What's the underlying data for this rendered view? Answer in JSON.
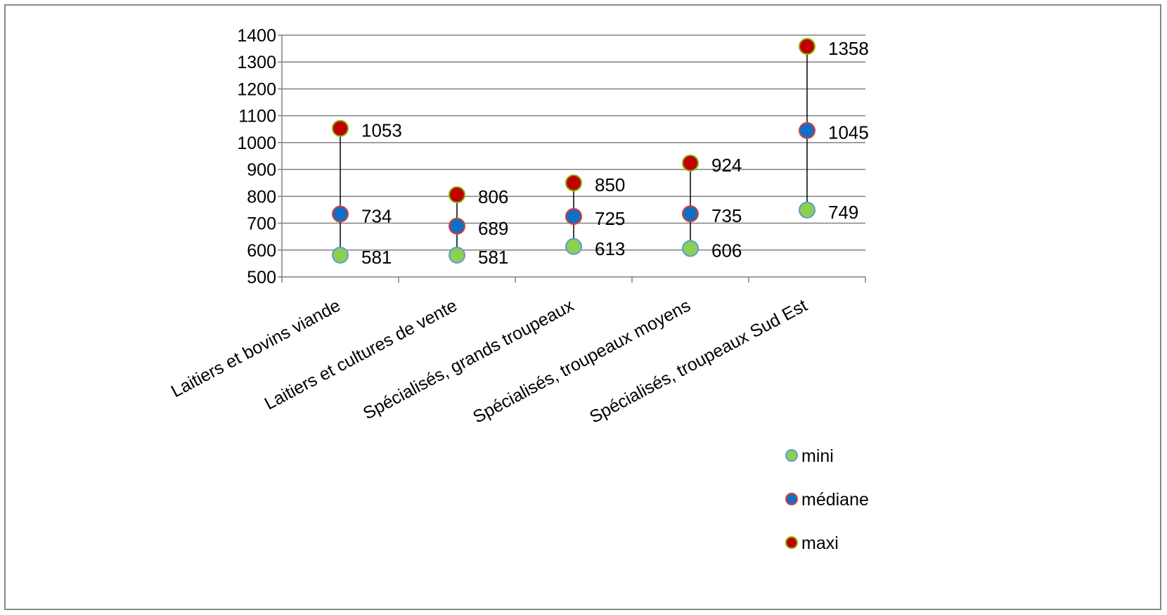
{
  "colors": {
    "mini_fill": "#8dcf50",
    "mini_stroke": "#5b9bd5",
    "mediane_fill": "#0f6fc6",
    "mediane_stroke": "#e03c31",
    "maxi_fill": "#c00000",
    "maxi_stroke": "#7fb800",
    "grid": "#808080",
    "range_line": "#000000"
  },
  "chart_data": {
    "type": "scatter",
    "categories": [
      "Laitiers et bovins viande",
      "Laitiers et cultures de vente",
      "Spécialisés, grands troupeaux",
      "Spécialisés, troupeaux moyens",
      "Spécialisés, troupeaux Sud Est"
    ],
    "series": [
      {
        "name": "mini",
        "values": [
          581,
          581,
          613,
          606,
          749
        ]
      },
      {
        "name": "médiane",
        "values": [
          734,
          689,
          725,
          735,
          1045
        ]
      },
      {
        "name": "maxi",
        "values": [
          1053,
          806,
          850,
          924,
          1358
        ]
      }
    ],
    "y_ticks": [
      "500",
      "600",
      "700",
      "800",
      "900",
      "1000",
      "1100",
      "1200",
      "1300",
      "1400"
    ],
    "ylim": [
      500,
      1400
    ],
    "grid": true,
    "legend": "bottom-right",
    "high_low_lines": true,
    "data_labels": true
  }
}
